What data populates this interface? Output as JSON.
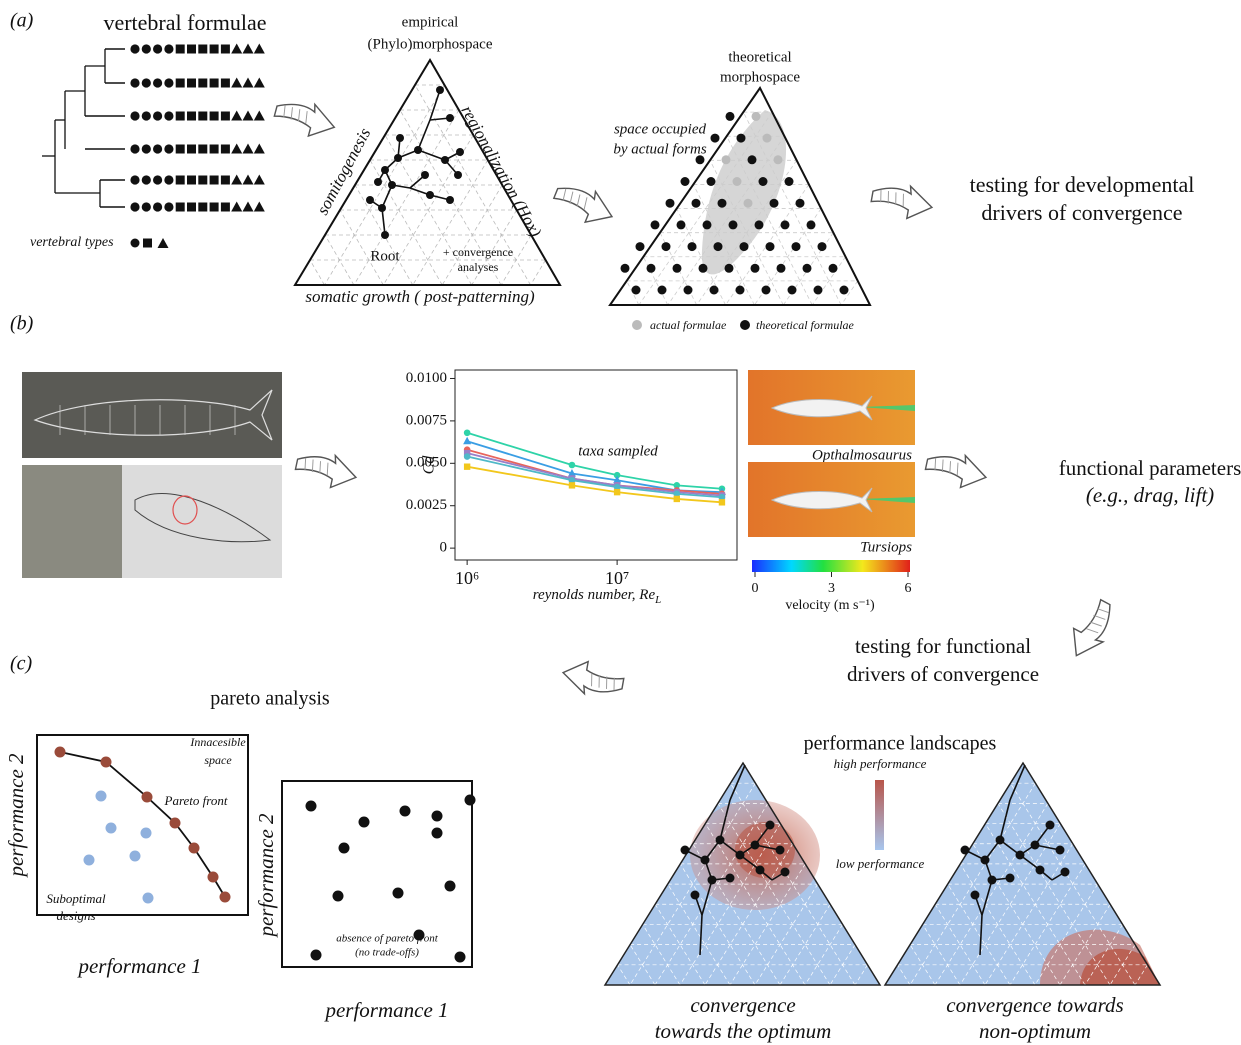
{
  "panel_a": {
    "label": "(a)",
    "title": "vertebral formulae",
    "types_label": "vertebral types",
    "empirical": [
      "empirical",
      "(Phylo)morphospace"
    ],
    "left_axis": "somitogenesis",
    "right_axis": "regionalization (Hox)",
    "root": "Root",
    "convergence_note": [
      "+ convergence",
      "analyses"
    ],
    "bottom_axis": "somatic growth ( post-patterning)",
    "theoretical": [
      "theoretical",
      "morphospace"
    ],
    "occupied": [
      "space occupied",
      "by actual forms"
    ],
    "legend": [
      "actual formulae",
      "theoretical formulae"
    ],
    "conclusion": [
      "testing for developmental",
      "drivers of convergence"
    ]
  },
  "panel_b": {
    "label": "(b)",
    "cfd_labels": [
      "Opthalmosaurus",
      "Tursiops"
    ],
    "colorbar_label": "velocity (m s⁻¹)",
    "colorbar_lim": [
      0,
      6
    ],
    "colorbar_ticks": [
      0,
      3,
      6
    ],
    "result": [
      "functional parameters",
      "(e.g., drag, lift)"
    ],
    "conclusion": [
      "testing for functional",
      "drivers of convergence"
    ]
  },
  "chart_data": {
    "type": "line",
    "ylabel": "Cd",
    "xlabel": "reynolds number, Re",
    "xlabel_sub": "L",
    "annotation": "taxa sampled",
    "xscale": "log",
    "x": [
      1000000,
      5000000,
      10000000,
      25000000,
      50000000
    ],
    "series": [
      {
        "color": "#2ed3a8",
        "marker": "circle",
        "values": [
          0.0068,
          0.0049,
          0.0043,
          0.0037,
          0.0035
        ]
      },
      {
        "color": "#3a9ee4",
        "marker": "triangle",
        "values": [
          0.0063,
          0.0044,
          0.004,
          0.0034,
          0.0033
        ]
      },
      {
        "color": "#e8645c",
        "marker": "circle",
        "values": [
          0.0058,
          0.0041,
          0.0037,
          0.0034,
          0.0032
        ]
      },
      {
        "color": "#9a7fc8",
        "marker": "square",
        "values": [
          0.0056,
          0.0041,
          0.0037,
          0.0033,
          0.0031
        ]
      },
      {
        "color": "#4fb8c8",
        "marker": "circle",
        "values": [
          0.0054,
          0.004,
          0.0036,
          0.0032,
          0.003
        ]
      },
      {
        "color": "#f2c71c",
        "marker": "square",
        "values": [
          0.0048,
          0.0037,
          0.0033,
          0.0029,
          0.0027
        ]
      }
    ],
    "xlim": [
      830000,
      63000000
    ],
    "xticks": [
      {
        "value": 1000000,
        "label": "10⁶"
      },
      {
        "value": 10000000,
        "label": "10⁷"
      }
    ],
    "ylim": [
      -0.0007,
      0.0105
    ],
    "yticks": [
      0,
      0.0025,
      {
        "value": 0.005,
        "label": "0.0050"
      },
      0.0075,
      {
        "value": 0.01,
        "label": "0.0100"
      }
    ]
  },
  "panel_c": {
    "label": "(c)",
    "pareto_title": "pareto analysis",
    "y_axis": "performance 2",
    "x_axis": "performance 1",
    "inaccessible": [
      "Innacesible",
      "space"
    ],
    "front": "Pareto front",
    "suboptimal": [
      "Suboptimal",
      "designs"
    ],
    "y_axis_2": "performance 2",
    "x_axis_2": "performance 1",
    "no_front": [
      "absence of pareto front",
      "(no trade-offs)"
    ],
    "landscapes_title": "performance landscapes",
    "high": "high performance",
    "low": "low performance",
    "optimum": [
      "convergence",
      "towards the optimum"
    ],
    "non_optimum": [
      "convergence towards",
      "non-optimum"
    ]
  }
}
